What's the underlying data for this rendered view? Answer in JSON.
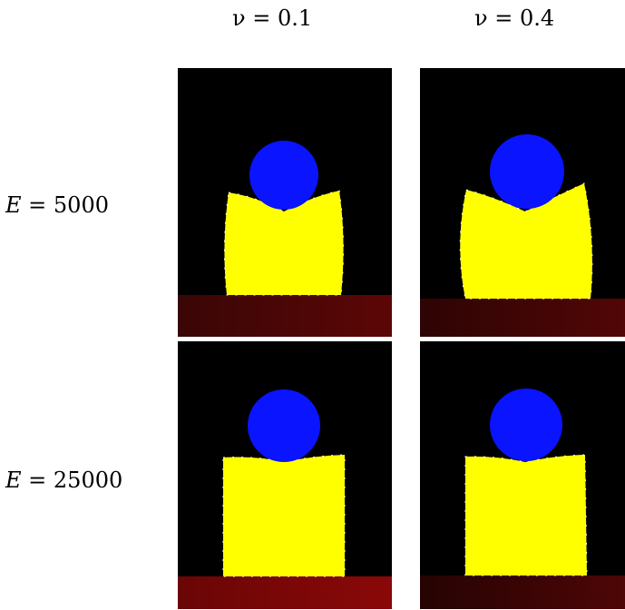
{
  "columns": [
    {
      "label": "ν = 0.1"
    },
    {
      "label": "ν = 0.4"
    }
  ],
  "rows": [
    {
      "variable": "E",
      "rest": " = 5000"
    },
    {
      "variable": "E",
      "rest": " = 25000"
    }
  ],
  "colors": {
    "background": "#000000",
    "sphere": "#0a14ff",
    "block": "#ffff00",
    "ground": "#6e0808"
  }
}
